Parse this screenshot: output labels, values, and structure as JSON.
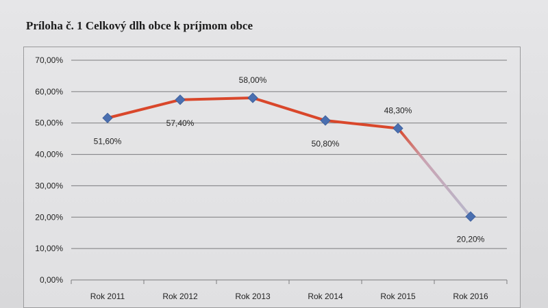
{
  "title": "Príloha č. 1 Celkový dlh obce k príjmom obce",
  "chart_data": {
    "type": "line",
    "title": "Príloha č. 1 Celkový dlh obce k príjmom obce",
    "categories": [
      "Rok 2011",
      "Rok 2012",
      "Rok 2013",
      "Rok 2014",
      "Rok 2015",
      "Rok 2016"
    ],
    "values": [
      51.6,
      57.4,
      58.0,
      50.8,
      48.3,
      20.2
    ],
    "data_labels": [
      "51,60%",
      "57,40%",
      "58,00%",
      "50,80%",
      "48,30%",
      "20,20%"
    ],
    "y_ticks": [
      "0,00%",
      "10,00%",
      "20,00%",
      "30,00%",
      "40,00%",
      "50,00%",
      "60,00%",
      "70,00%"
    ],
    "ylim": [
      0,
      70
    ],
    "xlabel": "",
    "ylabel": "",
    "grid": true,
    "legend": "none",
    "colors": {
      "line": "#d9472b",
      "line_fade": "#b8b8cc",
      "marker": "#4a6fb0",
      "grid": "#7a7a7c"
    }
  }
}
